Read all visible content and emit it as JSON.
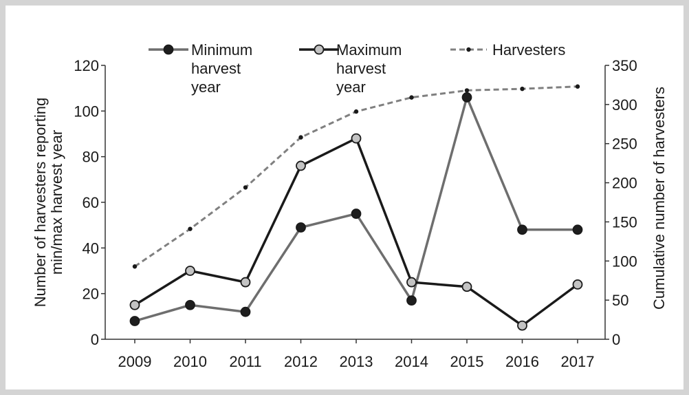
{
  "chart_data": {
    "type": "line",
    "categories": [
      "2009",
      "2010",
      "2011",
      "2012",
      "2013",
      "2014",
      "2015",
      "2016",
      "2017"
    ],
    "y_left": {
      "label_lines": [
        "Number of harvesters reporting",
        "min/max harvest year"
      ],
      "range": [
        0,
        120
      ],
      "ticks": [
        "0",
        "20",
        "40",
        "60",
        "80",
        "100",
        "120"
      ]
    },
    "y_right": {
      "label": "Cumulative number of harvesters",
      "range": [
        0,
        350
      ],
      "ticks": [
        "0",
        "50",
        "100",
        "150",
        "200",
        "250",
        "300",
        "350"
      ]
    },
    "grid": false,
    "legend_position": "top",
    "series": [
      {
        "name_lines": [
          "Minimum",
          "harvest",
          "year"
        ],
        "axis": "left",
        "style": "solid",
        "color": "#6e6e6e",
        "marker_fill": "#1e1e1e",
        "values": [
          8,
          15,
          12,
          49,
          55,
          17,
          106,
          48,
          48
        ]
      },
      {
        "name_lines": [
          "Maximum",
          "harvest",
          "year"
        ],
        "axis": "left",
        "style": "solid",
        "color": "#1a1a1a",
        "marker_fill": "#c3c3c3",
        "values": [
          15,
          30,
          25,
          76,
          88,
          25,
          23,
          6,
          24
        ]
      },
      {
        "name_lines": [
          "Harvesters"
        ],
        "axis": "right",
        "style": "dashed",
        "color": "#808080",
        "marker_fill": "#1a1a1a",
        "values": [
          93,
          141,
          194,
          258,
          291,
          309,
          318,
          320,
          323
        ]
      }
    ]
  }
}
